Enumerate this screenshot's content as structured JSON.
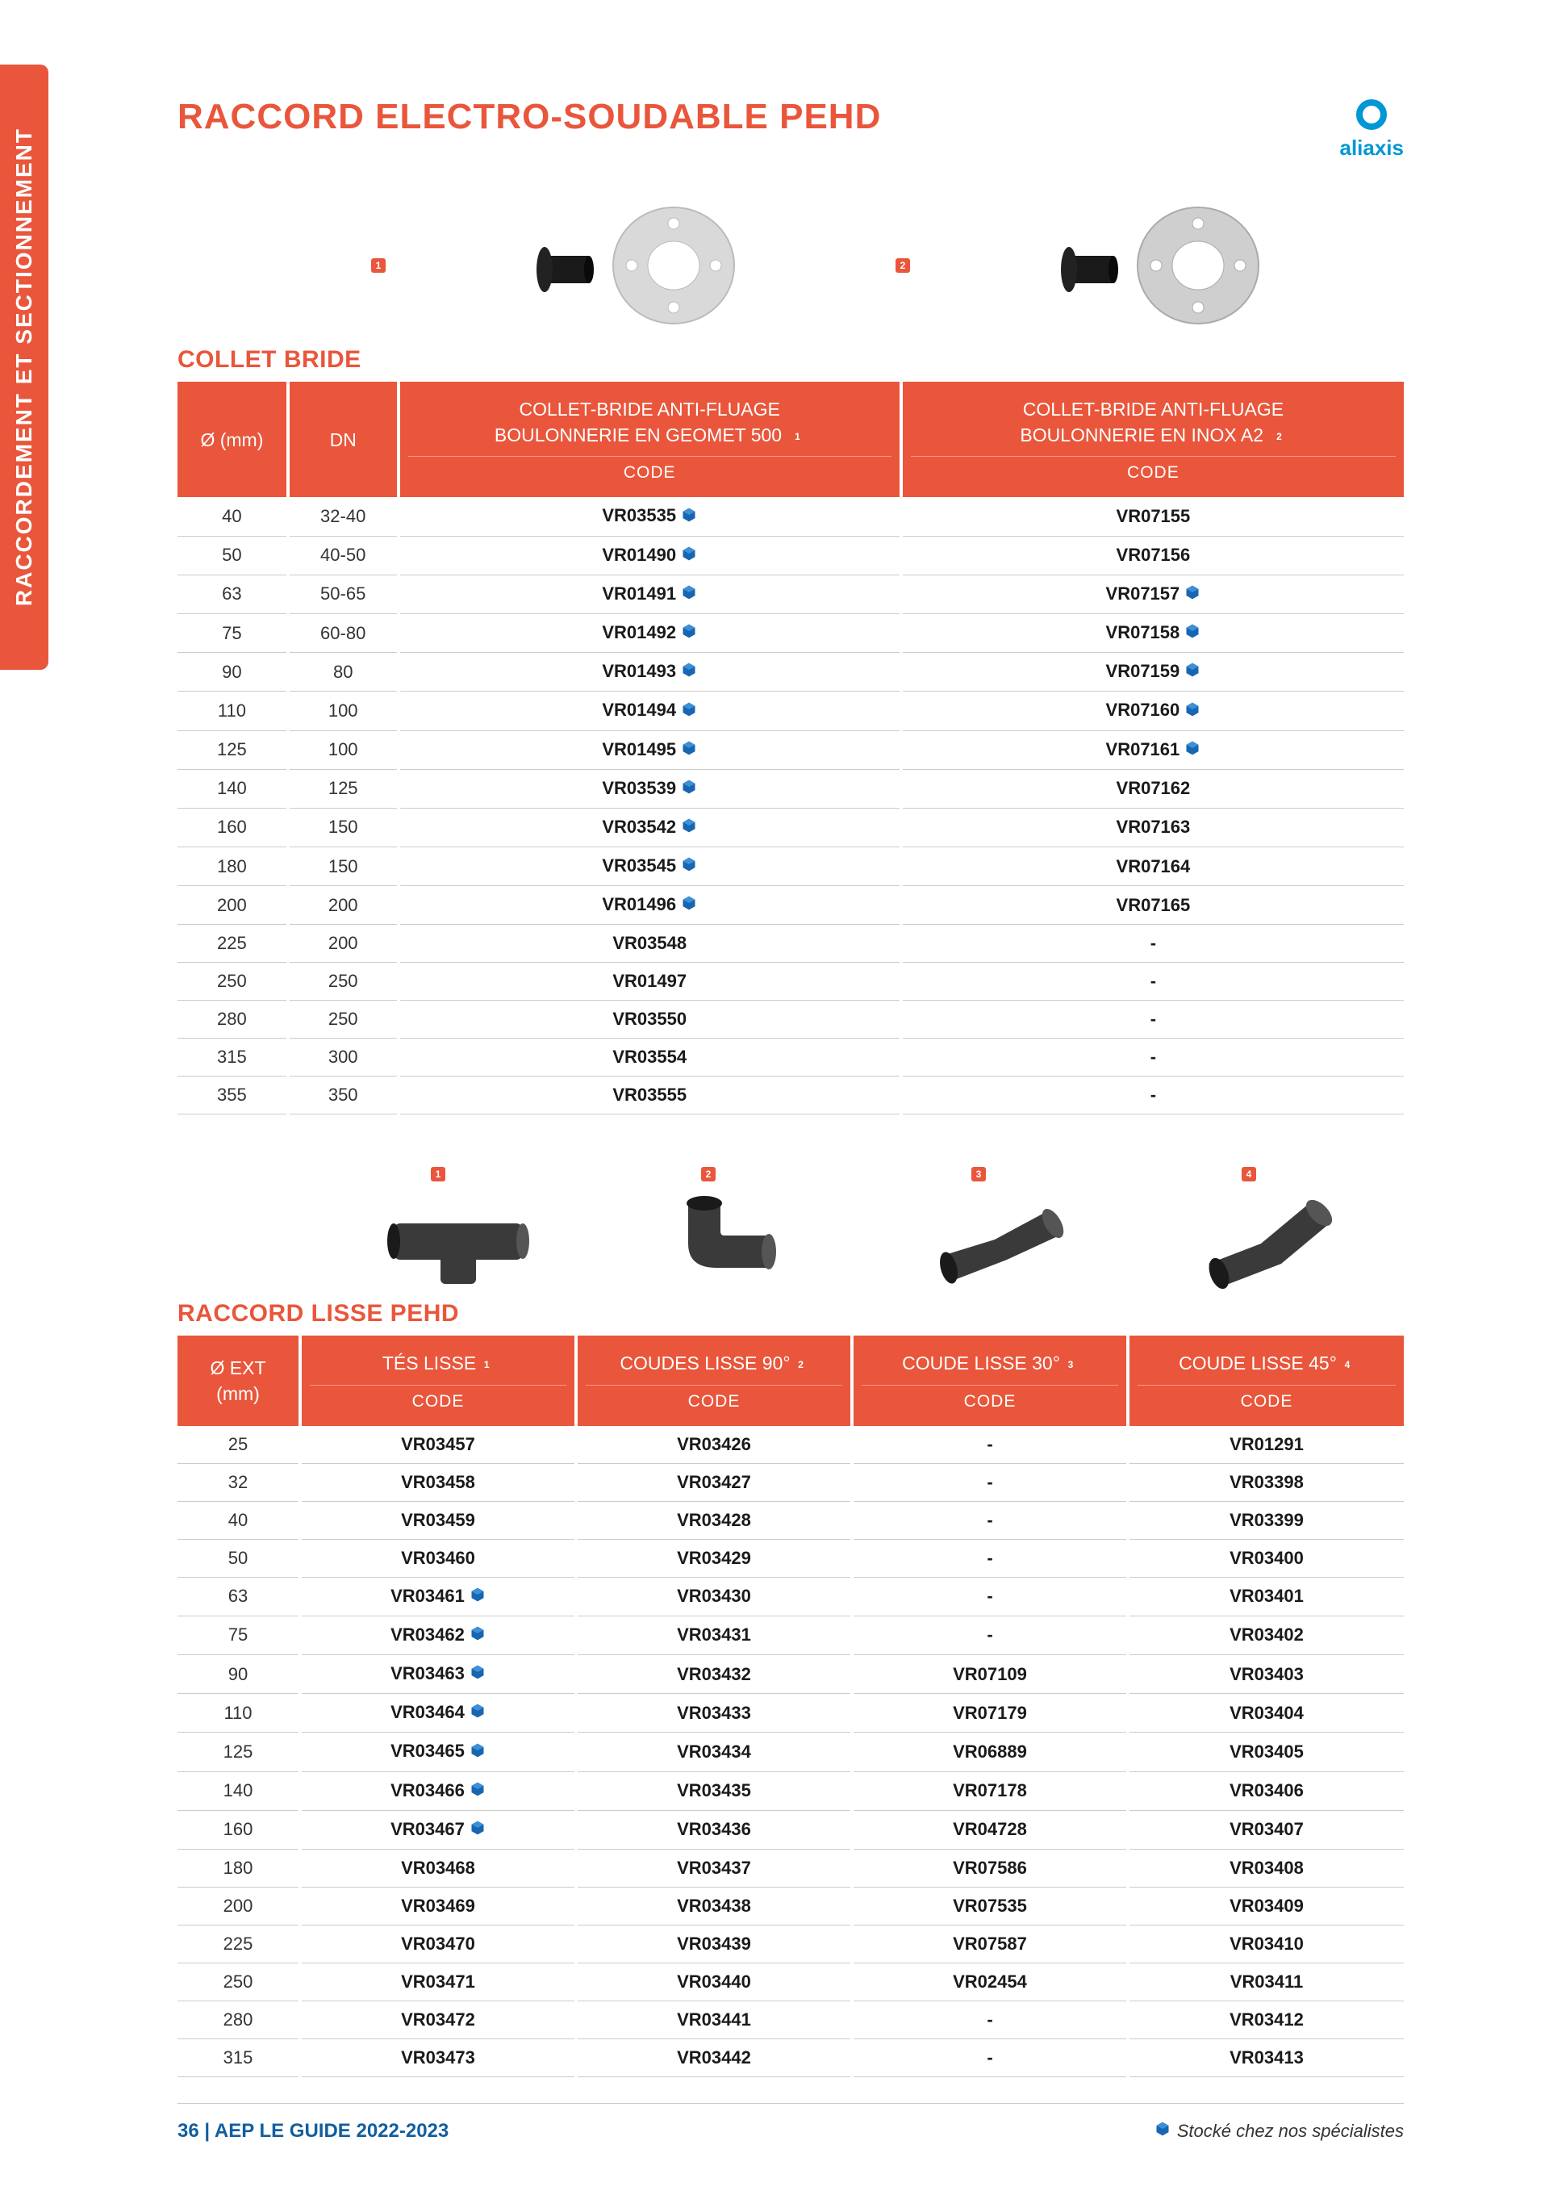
{
  "sidebar": {
    "label": "RACCORDEMENT ET SECTIONNEMENT"
  },
  "brand": {
    "name": "aliaxis",
    "color": "#0097d6"
  },
  "page_title": "RACCORD  ELECTRO-SOUDABLE PEHD",
  "section1": {
    "title": "COLLET BRIDE",
    "headers": {
      "diam": "Ø (mm)",
      "dn": "DN",
      "col1_line1": "COLLET-BRIDE ANTI-FLUAGE",
      "col1_line2": "BOULONNERIE EN GEOMET 500",
      "col2_line1": "COLLET-BRIDE ANTI-FLUAGE",
      "col2_line2": "BOULONNERIE EN INOX A2",
      "code": "CODE"
    },
    "rows": [
      {
        "diam": "40",
        "dn": "32-40",
        "c1": "VR03535",
        "c1_stock": true,
        "c2": "VR07155",
        "c2_stock": false
      },
      {
        "diam": "50",
        "dn": "40-50",
        "c1": "VR01490",
        "c1_stock": true,
        "c2": "VR07156",
        "c2_stock": false
      },
      {
        "diam": "63",
        "dn": "50-65",
        "c1": "VR01491",
        "c1_stock": true,
        "c2": "VR07157",
        "c2_stock": true
      },
      {
        "diam": "75",
        "dn": "60-80",
        "c1": "VR01492",
        "c1_stock": true,
        "c2": "VR07158",
        "c2_stock": true
      },
      {
        "diam": "90",
        "dn": "80",
        "c1": "VR01493",
        "c1_stock": true,
        "c2": "VR07159",
        "c2_stock": true
      },
      {
        "diam": "110",
        "dn": "100",
        "c1": "VR01494",
        "c1_stock": true,
        "c2": "VR07160",
        "c2_stock": true
      },
      {
        "diam": "125",
        "dn": "100",
        "c1": "VR01495",
        "c1_stock": true,
        "c2": "VR07161",
        "c2_stock": true
      },
      {
        "diam": "140",
        "dn": "125",
        "c1": "VR03539",
        "c1_stock": true,
        "c2": "VR07162",
        "c2_stock": false
      },
      {
        "diam": "160",
        "dn": "150",
        "c1": "VR03542",
        "c1_stock": true,
        "c2": "VR07163",
        "c2_stock": false
      },
      {
        "diam": "180",
        "dn": "150",
        "c1": "VR03545",
        "c1_stock": true,
        "c2": "VR07164",
        "c2_stock": false
      },
      {
        "diam": "200",
        "dn": "200",
        "c1": "VR01496",
        "c1_stock": true,
        "c2": "VR07165",
        "c2_stock": false
      },
      {
        "diam": "225",
        "dn": "200",
        "c1": "VR03548",
        "c1_stock": false,
        "c2": "-",
        "c2_stock": false
      },
      {
        "diam": "250",
        "dn": "250",
        "c1": "VR01497",
        "c1_stock": false,
        "c2": "-",
        "c2_stock": false
      },
      {
        "diam": "280",
        "dn": "250",
        "c1": "VR03550",
        "c1_stock": false,
        "c2": "-",
        "c2_stock": false
      },
      {
        "diam": "315",
        "dn": "300",
        "c1": "VR03554",
        "c1_stock": false,
        "c2": "-",
        "c2_stock": false
      },
      {
        "diam": "355",
        "dn": "350",
        "c1": "VR03555",
        "c1_stock": false,
        "c2": "-",
        "c2_stock": false
      }
    ]
  },
  "section2": {
    "title": "RACCORD LISSE PEHD",
    "headers": {
      "diam_line1": "Ø EXT",
      "diam_line2": "(mm)",
      "c1": "TÉS LISSE",
      "c2": "COUDES LISSE 90°",
      "c3": "COUDE LISSE 30°",
      "c4": "COUDE LISSE 45°",
      "code": "CODE"
    },
    "rows": [
      {
        "diam": "25",
        "c1": "VR03457",
        "c1_stock": false,
        "c2": "VR03426",
        "c3": "-",
        "c4": "VR01291"
      },
      {
        "diam": "32",
        "c1": "VR03458",
        "c1_stock": false,
        "c2": "VR03427",
        "c3": "-",
        "c4": "VR03398"
      },
      {
        "diam": "40",
        "c1": "VR03459",
        "c1_stock": false,
        "c2": "VR03428",
        "c3": "-",
        "c4": "VR03399"
      },
      {
        "diam": "50",
        "c1": "VR03460",
        "c1_stock": false,
        "c2": "VR03429",
        "c3": "-",
        "c4": "VR03400"
      },
      {
        "diam": "63",
        "c1": "VR03461",
        "c1_stock": true,
        "c2": "VR03430",
        "c3": "-",
        "c4": "VR03401"
      },
      {
        "diam": "75",
        "c1": "VR03462",
        "c1_stock": true,
        "c2": "VR03431",
        "c3": "-",
        "c4": "VR03402"
      },
      {
        "diam": "90",
        "c1": "VR03463",
        "c1_stock": true,
        "c2": "VR03432",
        "c3": "VR07109",
        "c4": "VR03403"
      },
      {
        "diam": "110",
        "c1": "VR03464",
        "c1_stock": true,
        "c2": "VR03433",
        "c3": "VR07179",
        "c4": "VR03404"
      },
      {
        "diam": "125",
        "c1": "VR03465",
        "c1_stock": true,
        "c2": "VR03434",
        "c3": "VR06889",
        "c4": "VR03405"
      },
      {
        "diam": "140",
        "c1": "VR03466",
        "c1_stock": true,
        "c2": "VR03435",
        "c3": "VR07178",
        "c4": "VR03406"
      },
      {
        "diam": "160",
        "c1": "VR03467",
        "c1_stock": true,
        "c2": "VR03436",
        "c3": "VR04728",
        "c4": "VR03407"
      },
      {
        "diam": "180",
        "c1": "VR03468",
        "c1_stock": false,
        "c2": "VR03437",
        "c3": "VR07586",
        "c4": "VR03408"
      },
      {
        "diam": "200",
        "c1": "VR03469",
        "c1_stock": false,
        "c2": "VR03438",
        "c3": "VR07535",
        "c4": "VR03409"
      },
      {
        "diam": "225",
        "c1": "VR03470",
        "c1_stock": false,
        "c2": "VR03439",
        "c3": "VR07587",
        "c4": "VR03410"
      },
      {
        "diam": "250",
        "c1": "VR03471",
        "c1_stock": false,
        "c2": "VR03440",
        "c3": "VR02454",
        "c4": "VR03411"
      },
      {
        "diam": "280",
        "c1": "VR03472",
        "c1_stock": false,
        "c2": "VR03441",
        "c3": "-",
        "c4": "VR03412"
      },
      {
        "diam": "315",
        "c1": "VR03473",
        "c1_stock": false,
        "c2": "VR03442",
        "c3": "-",
        "c4": "VR03413"
      }
    ]
  },
  "footer": {
    "page_number": "36",
    "separator": " | ",
    "guide_text": "AEP LE GUIDE 2022-2023",
    "stock_text": "Stocké chez nos spécialistes"
  },
  "colors": {
    "accent": "#e9563b",
    "brand": "#0097d6",
    "footer_blue": "#115e9f",
    "border": "#cccccc",
    "text": "#333333"
  }
}
